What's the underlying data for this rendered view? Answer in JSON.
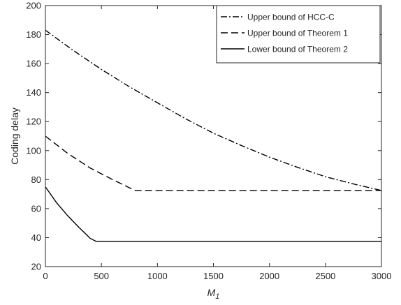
{
  "chart_data": {
    "type": "line",
    "title": "",
    "xlabel": "M",
    "xlabel_subscript": "1",
    "ylabel": "Coding delay",
    "xlim": [
      0,
      3000
    ],
    "ylim": [
      20,
      200
    ],
    "x_ticks": [
      0,
      500,
      1000,
      1500,
      2000,
      2500,
      3000
    ],
    "y_ticks": [
      20,
      40,
      60,
      80,
      100,
      120,
      140,
      160,
      180,
      200
    ],
    "grid": false,
    "legend_position": "top-right",
    "series": [
      {
        "name": "Upper bound of HCC-C",
        "line_style": "dash-dot",
        "color": "#000000",
        "points": [
          [
            0,
            183
          ],
          [
            250,
            169
          ],
          [
            500,
            156
          ],
          [
            750,
            144
          ],
          [
            1000,
            133
          ],
          [
            1250,
            122
          ],
          [
            1500,
            112
          ],
          [
            1750,
            103.5
          ],
          [
            2000,
            95.5
          ],
          [
            2250,
            88.5
          ],
          [
            2500,
            82
          ],
          [
            2750,
            77
          ],
          [
            3000,
            72.5
          ]
        ]
      },
      {
        "name": "Upper bound of Theorem 1",
        "line_style": "dashed",
        "color": "#000000",
        "points": [
          [
            0,
            110
          ],
          [
            200,
            98
          ],
          [
            400,
            88
          ],
          [
            600,
            80
          ],
          [
            800,
            72.5
          ],
          [
            3000,
            72.5
          ]
        ]
      },
      {
        "name": "Lower bound of Theorem 2",
        "line_style": "solid",
        "color": "#000000",
        "points": [
          [
            0,
            75
          ],
          [
            100,
            64
          ],
          [
            200,
            55
          ],
          [
            300,
            47
          ],
          [
            400,
            39.5
          ],
          [
            450,
            37.5
          ],
          [
            3000,
            37.5
          ]
        ]
      }
    ]
  }
}
